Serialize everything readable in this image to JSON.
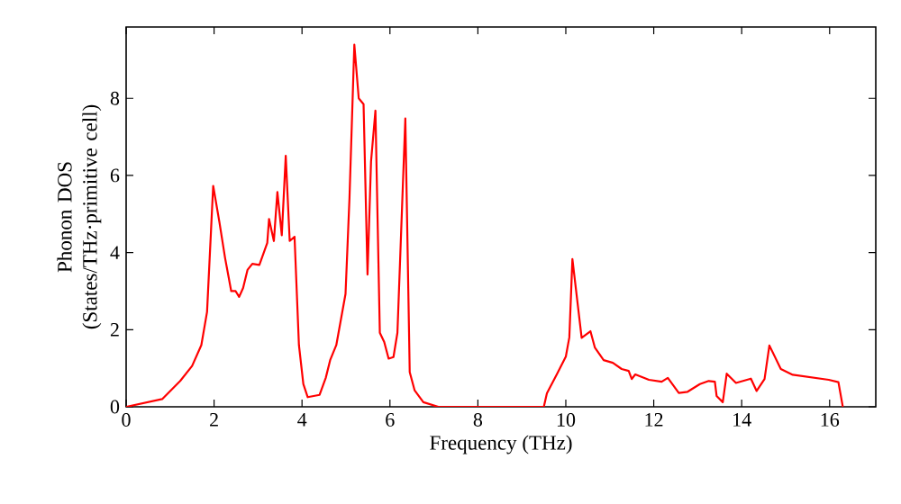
{
  "chart_data": {
    "type": "line",
    "xlabel": "Frequency (THz)",
    "ylabel": "Phonon DOS (States/THz·primitive cell)",
    "xlim": [
      0,
      17.05
    ],
    "ylim": [
      0,
      9.85
    ],
    "xticks": [
      0,
      2,
      4,
      6,
      8,
      10,
      12,
      14,
      16
    ],
    "yticks": [
      0,
      2,
      4,
      6,
      8
    ],
    "grid": false,
    "marker": "none",
    "line_style": "solid",
    "x": [
      0,
      0.82,
      1.23,
      1.5,
      1.71,
      1.84,
      1.98,
      2.12,
      2.25,
      2.39,
      2.49,
      2.57,
      2.66,
      2.76,
      2.87,
      3.03,
      3.21,
      3.25,
      3.36,
      3.44,
      3.54,
      3.63,
      3.72,
      3.83,
      3.93,
      4.03,
      4.13,
      4.4,
      4.54,
      4.64,
      4.78,
      4.99,
      5.08,
      5.19,
      5.29,
      5.4,
      5.49,
      5.57,
      5.67,
      5.77,
      5.87,
      5.97,
      6.08,
      6.17,
      6.35,
      6.45,
      6.56,
      6.76,
      7.1,
      9.5,
      9.57,
      9.8,
      10.0,
      10.08,
      10.15,
      10.36,
      10.56,
      10.66,
      10.86,
      11.07,
      11.27,
      11.43,
      11.5,
      11.58,
      11.89,
      12.18,
      12.32,
      12.57,
      12.77,
      13.05,
      13.25,
      13.39,
      13.43,
      13.57,
      13.66,
      13.87,
      14.21,
      14.34,
      14.52,
      14.63,
      14.89,
      15.16,
      15.98,
      16.2,
      16.3
    ],
    "series": [
      {
        "color": "#ff0000",
        "values": [
          0,
          0.2,
          0.67,
          1.06,
          1.6,
          2.46,
          5.73,
          4.8,
          3.86,
          3.0,
          3.0,
          2.85,
          3.08,
          3.55,
          3.71,
          3.68,
          4.25,
          4.87,
          4.3,
          5.57,
          4.45,
          6.51,
          4.3,
          4.41,
          1.6,
          0.59,
          0.25,
          0.31,
          0.75,
          1.21,
          1.6,
          2.93,
          5.42,
          9.39,
          8.0,
          7.85,
          3.43,
          6.36,
          7.68,
          1.92,
          1.68,
          1.25,
          1.29,
          1.92,
          7.48,
          0.9,
          0.43,
          0.12,
          0,
          0,
          0.35,
          0.85,
          1.3,
          1.8,
          3.83,
          1.79,
          1.96,
          1.54,
          1.21,
          1.14,
          0.98,
          0.93,
          0.72,
          0.84,
          0.7,
          0.65,
          0.75,
          0.36,
          0.39,
          0.59,
          0.67,
          0.65,
          0.28,
          0.12,
          0.86,
          0.62,
          0.73,
          0.41,
          0.72,
          1.59,
          0.98,
          0.83,
          0.7,
          0.64,
          0
        ]
      }
    ]
  }
}
